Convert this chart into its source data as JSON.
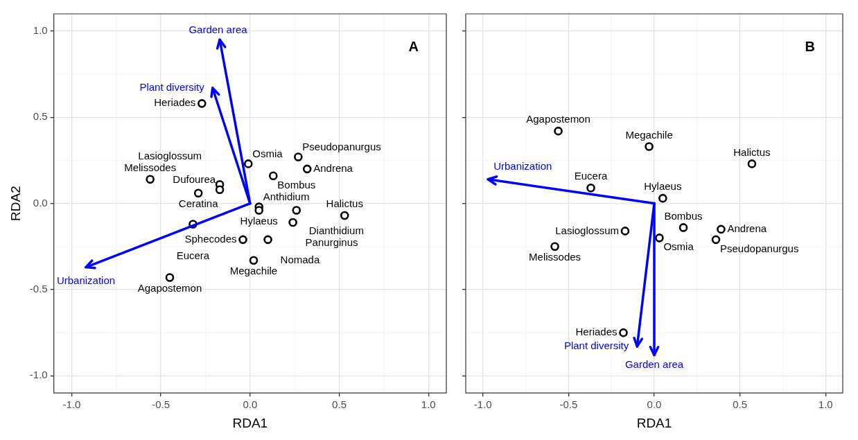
{
  "chart_data": [
    {
      "type": "scatter",
      "xlabel": "RDA1",
      "ylabel": "RDA2",
      "xlim": [
        -1.1,
        1.1
      ],
      "ylim": [
        -1.1,
        1.1
      ],
      "xticks": [
        {
          "value": -1,
          "label": "-1.0"
        },
        {
          "value": -0.5,
          "label": "-0.5"
        },
        {
          "value": 0,
          "label": "0.0"
        },
        {
          "value": 0.5,
          "label": "0.5"
        },
        {
          "value": 1,
          "label": "1.0"
        }
      ],
      "yticks": [
        {
          "value": -1,
          "label": "-1.0"
        },
        {
          "value": -0.5,
          "label": "-0.5"
        },
        {
          "value": 0,
          "label": "0.0"
        },
        {
          "value": 0.5,
          "label": "0.5"
        },
        {
          "value": 1,
          "label": "1.0"
        }
      ],
      "grid": true,
      "annotations": [
        "A",
        "Garden area",
        "Plant diversity",
        "Urbanization"
      ],
      "series": [
        {
          "type": "scatter",
          "marker": "circle",
          "color": "#000000",
          "x": [
            -0.27,
            -0.56,
            -0.29,
            -0.01,
            -0.17,
            -0.17,
            0.05,
            0.05,
            0.13,
            0.27,
            0.32,
            0.26,
            0.24,
            0.53,
            -0.04,
            0.1,
            0.02,
            -0.32,
            -0.45
          ],
          "values": [
            0.58,
            0.14,
            0.06,
            0.23,
            0.11,
            0.08,
            -0.02,
            -0.04,
            0.16,
            0.27,
            0.2,
            -0.04,
            -0.11,
            -0.07,
            -0.21,
            -0.21,
            -0.33,
            -0.12,
            -0.43
          ],
          "value_labels": [
            "Heriades",
            "Melissodes",
            "Ceratina",
            "Osmia",
            "Lasioglossum",
            "Dufourea",
            "Anthidium",
            "Hylaeus",
            "Bombus",
            "Pseudopanurgus",
            "Andrena",
            "Dianthidium",
            "Panurginus",
            "Halictus",
            "Sphecodes",
            "Nomada",
            "Megachile",
            "Eucera",
            "Agapostemon"
          ]
        }
      ]
    },
    {
      "type": "scatter",
      "xlabel": "RDA1",
      "xlim": [
        -1.1,
        1.1
      ],
      "ylim": [
        -1.1,
        1.1
      ],
      "tick_labels": "x",
      "xticks": [
        {
          "value": -1,
          "label": "-1.0"
        },
        {
          "value": -0.5,
          "label": "-0.5"
        },
        {
          "value": 0,
          "label": "0.0"
        },
        {
          "value": 0.5,
          "label": "0.5"
        },
        {
          "value": 1,
          "label": "1.0"
        }
      ],
      "yticks": [
        -1,
        -0.5,
        0,
        0.5,
        1
      ],
      "grid": true,
      "annotations": [
        "B",
        "Urbanization",
        "Plant diversity",
        "Garden area"
      ],
      "series": [
        {
          "type": "scatter",
          "marker": "circle",
          "color": "#000000",
          "x": [
            -0.56,
            -0.03,
            0.57,
            -0.37,
            0.05,
            -0.17,
            0.03,
            0.17,
            0.39,
            0.36,
            -0.58,
            -0.18
          ],
          "values": [
            0.42,
            0.33,
            0.23,
            0.09,
            0.03,
            -0.16,
            -0.2,
            -0.14,
            -0.15,
            -0.21,
            -0.25,
            -0.75
          ],
          "value_labels": [
            "Agapostemon",
            "Megachile",
            "Halictus",
            "Eucera",
            "Hylaeus",
            "Lasioglossum",
            "Osmia",
            "Bombus",
            "Andrena",
            "Pseudopanurgus",
            "Melissodes",
            "Heriades"
          ]
        }
      ]
    }
  ]
}
